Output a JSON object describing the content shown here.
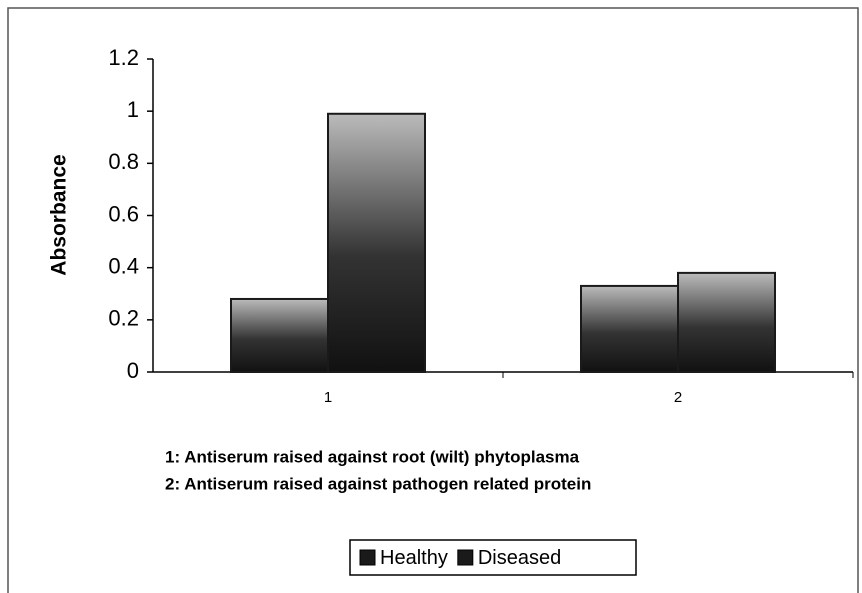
{
  "chart_data": {
    "type": "bar",
    "y_label": "Absorbance",
    "categories": [
      "1",
      "2"
    ],
    "series": [
      {
        "name": "Healthy",
        "color": "#1a1a1a",
        "values": [
          0.28,
          0.33
        ]
      },
      {
        "name": "Diseased",
        "color": "#1a1a1a",
        "values": [
          0.99,
          0.38
        ]
      }
    ],
    "ylim": [
      0,
      1.2
    ],
    "yticks": [
      0,
      0.2,
      0.4,
      0.6,
      0.8,
      1,
      1.2
    ],
    "annotations": [
      "1: Antiserum raised against root (wilt) phytoplasma",
      "2: Antiserum raised against pathogen related protein"
    ],
    "legend": "bottom"
  }
}
